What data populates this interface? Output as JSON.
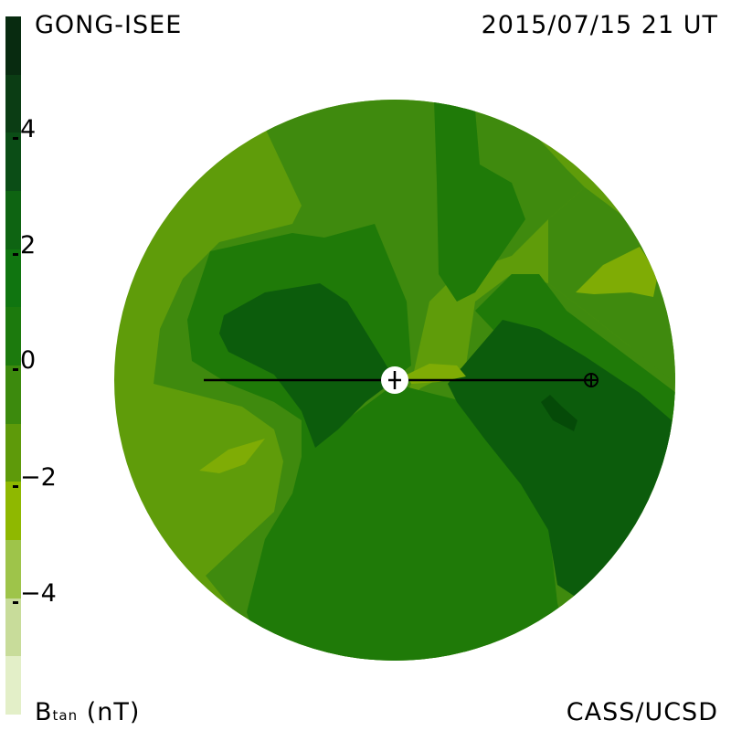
{
  "header": {
    "source": "GONG-ISEE",
    "datetime": "2015/07/15 21 UT"
  },
  "footer": {
    "quantity": "B",
    "quantity_sub": "tan",
    "unit": "(nT)",
    "credit": "CASS/UCSD"
  },
  "colorbar": {
    "ticks": [
      "4",
      "2",
      "0",
      "−2",
      "−4"
    ],
    "colors": [
      "#082b10",
      "#0b3d14",
      "#0b4d16",
      "#0e5a16",
      "#0e6412",
      "#107510",
      "#1c7a0d",
      "#3c8a0d",
      "#5e9a0a",
      "#7aaa0a",
      "#8fb800",
      "#9ec44a",
      "#c8dc9a",
      "#e3efc8"
    ]
  },
  "palette": {
    "level_1": "#5f9c0a",
    "level_0": "#3f8a0e",
    "level_p1": "#1f7a08",
    "level_p2": "#0c5c0c",
    "level_p3": "#054a08",
    "level_m2": "#7fac05",
    "line": "#000000"
  }
}
